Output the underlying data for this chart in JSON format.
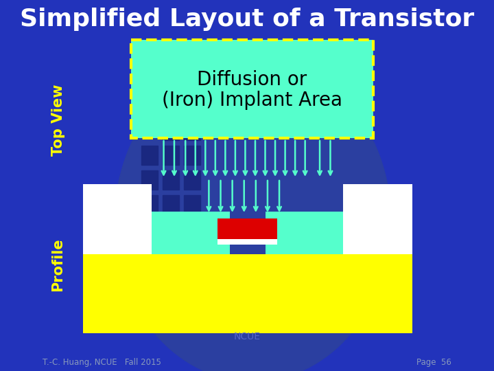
{
  "title": "Simplified Layout of a Transistor",
  "title_color": "#FFFFFF",
  "title_fontsize": 26,
  "bg_color": "#2233BB",
  "circle_color": "#2B3FA0",
  "grid_color": "#1a2880",
  "label_top_view": "Top View",
  "label_profile": "Profile",
  "label_color": "#FFFF00",
  "label_fontsize": 15,
  "diffusion_box_color": "#55FFCC",
  "diffusion_box_border": "#FFFF00",
  "diffusion_text_line1": "Diffusion or",
  "diffusion_text_line2": "(Iron) Implant Area",
  "diffusion_text_color": "#000000",
  "diffusion_text_fontsize": 20,
  "yellow_color": "#FFFF00",
  "white_color": "#FFFFFF",
  "cyan_color": "#55FFCC",
  "red_color": "#DD0000",
  "arrow_color": "#55FFCC",
  "arrow_lw": 1.8,
  "footer_left": "T.-C. Huang, NCUE   Fall 2015",
  "footer_right": "Page  56",
  "footer_color": "#8899BB",
  "ncue_text": "NCUE",
  "ncue_color": "#5566CC",
  "ncue_fontsize": 10
}
